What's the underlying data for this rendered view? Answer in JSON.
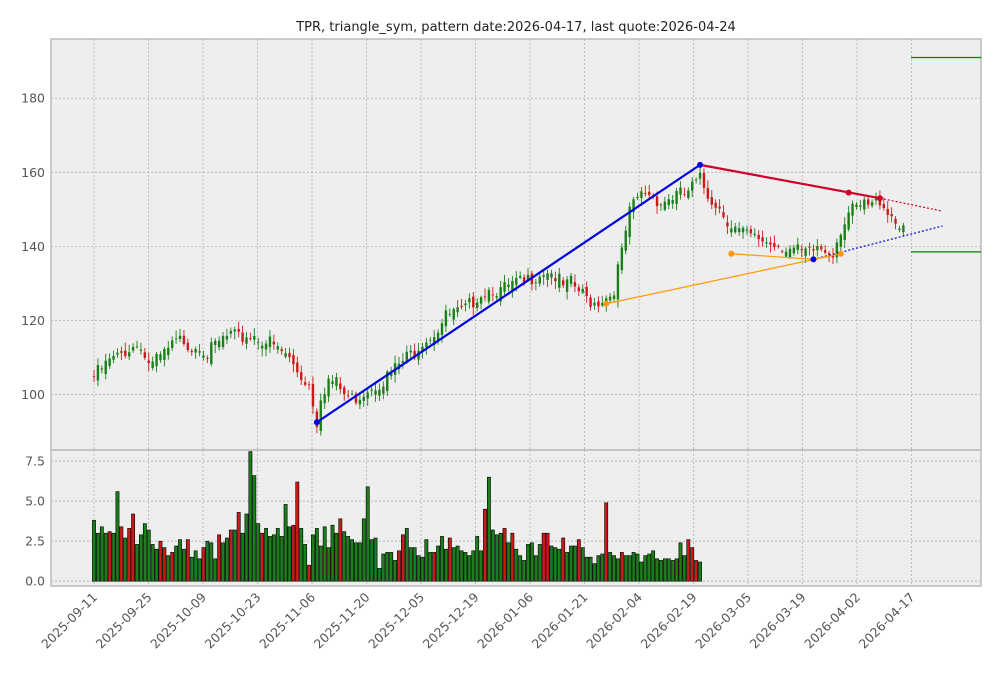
{
  "chart_data": {
    "type": "candlestick",
    "title": "TPR, triangle_sym, pattern date:2026-04-17, last quote:2026-04-24",
    "x_tick_labels": [
      "2025-09-11",
      "2025-09-25",
      "2025-10-09",
      "2025-10-23",
      "2025-11-06",
      "2025-11-20",
      "2025-12-05",
      "2025-12-19",
      "2026-01-06",
      "2026-01-21",
      "2026-02-04",
      "2026-02-19",
      "2026-03-05",
      "2026-03-19",
      "2026-04-02",
      "2026-04-17"
    ],
    "price_axis": {
      "ylim": [
        85,
        196
      ],
      "ticks": [
        100,
        120,
        140,
        160,
        180
      ]
    },
    "volume_axis": {
      "ylim": [
        -0.3,
        8.2
      ],
      "ticks": [
        0.0,
        2.5,
        5.0,
        7.5
      ],
      "tick_labels": [
        "0.0",
        "2.5",
        "5.0",
        "7.5"
      ]
    },
    "grid": true,
    "colors": {
      "up": "#1a7f1a",
      "down": "#cc1a1a",
      "trend_main": "#0000e0",
      "trend_upper": "#d0002a",
      "trend_aux": "#ff9900",
      "target_line": "#008000",
      "panel_bg": "#eeeeee"
    },
    "ohlc_close_path": [
      [
        0,
        106
      ],
      [
        2,
        108
      ],
      [
        4,
        110
      ],
      [
        6,
        111
      ],
      [
        8,
        113
      ],
      [
        10,
        114
      ],
      [
        12,
        115
      ],
      [
        13,
        111
      ],
      [
        15,
        109
      ],
      [
        17,
        111
      ],
      [
        19,
        113
      ],
      [
        21,
        115
      ],
      [
        23,
        116
      ],
      [
        25,
        114
      ],
      [
        27,
        115
      ],
      [
        29,
        112
      ],
      [
        31,
        114
      ],
      [
        33,
        116
      ],
      [
        35,
        117
      ],
      [
        37,
        116
      ],
      [
        39,
        117
      ],
      [
        41,
        117
      ],
      [
        43,
        116
      ],
      [
        45,
        115
      ],
      [
        47,
        113
      ],
      [
        49,
        112
      ],
      [
        51,
        109
      ],
      [
        53,
        106
      ],
      [
        55,
        104
      ],
      [
        56,
        99
      ],
      [
        57,
        94
      ],
      [
        58,
        101
      ],
      [
        60,
        105
      ],
      [
        62,
        104
      ],
      [
        64,
        101
      ],
      [
        66,
        100
      ],
      [
        68,
        101
      ],
      [
        70,
        103
      ],
      [
        72,
        104
      ],
      [
        74,
        105
      ],
      [
        76,
        107
      ],
      [
        78,
        109
      ],
      [
        80,
        111
      ],
      [
        82,
        113
      ],
      [
        84,
        116
      ],
      [
        86,
        117
      ],
      [
        88,
        119
      ],
      [
        90,
        122
      ],
      [
        92,
        123
      ],
      [
        94,
        123
      ],
      [
        96,
        125
      ],
      [
        98,
        128
      ],
      [
        100,
        129
      ],
      [
        102,
        130
      ],
      [
        104,
        129
      ],
      [
        106,
        130
      ],
      [
        108,
        131
      ],
      [
        110,
        131
      ],
      [
        112,
        133
      ],
      [
        114,
        134
      ],
      [
        116,
        135
      ],
      [
        118,
        133
      ],
      [
        120,
        130
      ],
      [
        122,
        131
      ],
      [
        124,
        129
      ],
      [
        126,
        127
      ],
      [
        128,
        126
      ],
      [
        130,
        127
      ],
      [
        132,
        128
      ],
      [
        133,
        130
      ],
      [
        134,
        135
      ],
      [
        135,
        139
      ],
      [
        136,
        145
      ],
      [
        137,
        150
      ],
      [
        139,
        154
      ],
      [
        141,
        156
      ],
      [
        143,
        155
      ],
      [
        145,
        153
      ],
      [
        147,
        154
      ],
      [
        149,
        155
      ],
      [
        151,
        155
      ],
      [
        153,
        157
      ],
      [
        155,
        159
      ],
      [
        157,
        155
      ],
      [
        159,
        153
      ],
      [
        161,
        150
      ],
      [
        163,
        147
      ],
      [
        165,
        145
      ],
      [
        167,
        144
      ],
      [
        169,
        143
      ],
      [
        171,
        143
      ],
      [
        173,
        142
      ],
      [
        175,
        142
      ],
      [
        177,
        141
      ],
      [
        179,
        140
      ],
      [
        181,
        139
      ],
      [
        183,
        139
      ],
      [
        185,
        141
      ],
      [
        187,
        140
      ],
      [
        189,
        140
      ],
      [
        191,
        146
      ],
      [
        193,
        150
      ],
      [
        195,
        151
      ],
      [
        197,
        152
      ],
      [
        199,
        152
      ],
      [
        201,
        154
      ],
      [
        203,
        151
      ],
      [
        205,
        148
      ],
      [
        207,
        147
      ]
    ],
    "volume_bars": [
      [
        "u",
        3.8
      ],
      [
        "u",
        3.0
      ],
      [
        "u",
        3.4
      ],
      [
        "u",
        3.0
      ],
      [
        "d",
        3.1
      ],
      [
        "u",
        3.0
      ],
      [
        "u",
        5.6
      ],
      [
        "d",
        3.4
      ],
      [
        "u",
        2.7
      ],
      [
        "d",
        3.3
      ],
      [
        "d",
        4.2
      ],
      [
        "u",
        2.3
      ],
      [
        "u",
        2.9
      ],
      [
        "u",
        3.6
      ],
      [
        "u",
        3.2
      ],
      [
        "u",
        2.3
      ],
      [
        "u",
        2.0
      ],
      [
        "d",
        2.5
      ],
      [
        "d",
        2.1
      ],
      [
        "u",
        1.6
      ],
      [
        "d",
        1.8
      ],
      [
        "u",
        2.2
      ],
      [
        "u",
        2.6
      ],
      [
        "u",
        2.0
      ],
      [
        "d",
        2.6
      ],
      [
        "u",
        1.5
      ],
      [
        "u",
        1.9
      ],
      [
        "u",
        1.4
      ],
      [
        "d",
        2.1
      ],
      [
        "u",
        2.5
      ],
      [
        "u",
        2.4
      ],
      [
        "u",
        1.4
      ],
      [
        "d",
        2.9
      ],
      [
        "u",
        2.4
      ],
      [
        "u",
        2.7
      ],
      [
        "d",
        3.2
      ],
      [
        "u",
        3.2
      ],
      [
        "d",
        4.3
      ],
      [
        "u",
        3.0
      ],
      [
        "u",
        4.2
      ],
      [
        "u",
        8.1
      ],
      [
        "u",
        6.6
      ],
      [
        "u",
        3.6
      ],
      [
        "d",
        3.0
      ],
      [
        "u",
        3.3
      ],
      [
        "u",
        2.8
      ],
      [
        "u",
        2.9
      ],
      [
        "u",
        3.3
      ],
      [
        "u",
        2.8
      ],
      [
        "u",
        4.8
      ],
      [
        "u",
        3.4
      ],
      [
        "d",
        3.5
      ],
      [
        "d",
        6.2
      ],
      [
        "u",
        3.3
      ],
      [
        "u",
        2.3
      ],
      [
        "d",
        1.0
      ],
      [
        "u",
        2.9
      ],
      [
        "u",
        3.3
      ],
      [
        "u",
        2.2
      ],
      [
        "u",
        3.4
      ],
      [
        "u",
        2.1
      ],
      [
        "u",
        3.5
      ],
      [
        "u",
        3.0
      ],
      [
        "d",
        3.9
      ],
      [
        "u",
        3.1
      ],
      [
        "u",
        2.8
      ],
      [
        "u",
        2.6
      ],
      [
        "u",
        2.4
      ],
      [
        "u",
        2.4
      ],
      [
        "u",
        3.9
      ],
      [
        "u",
        5.9
      ],
      [
        "u",
        2.6
      ],
      [
        "u",
        2.7
      ],
      [
        "u",
        0.8
      ],
      [
        "u",
        1.7
      ],
      [
        "u",
        1.8
      ],
      [
        "u",
        1.8
      ],
      [
        "u",
        1.3
      ],
      [
        "d",
        1.9
      ],
      [
        "d",
        2.9
      ],
      [
        "u",
        3.3
      ],
      [
        "u",
        2.1
      ],
      [
        "u",
        2.1
      ],
      [
        "u",
        1.6
      ],
      [
        "u",
        1.5
      ],
      [
        "u",
        2.6
      ],
      [
        "u",
        1.8
      ],
      [
        "d",
        1.8
      ],
      [
        "u",
        2.2
      ],
      [
        "u",
        2.8
      ],
      [
        "u",
        2.0
      ],
      [
        "d",
        2.7
      ],
      [
        "u",
        2.1
      ],
      [
        "u",
        2.2
      ],
      [
        "u",
        1.9
      ],
      [
        "u",
        1.8
      ],
      [
        "u",
        1.6
      ],
      [
        "u",
        1.9
      ],
      [
        "u",
        2.8
      ],
      [
        "u",
        1.9
      ],
      [
        "d",
        4.5
      ],
      [
        "u",
        6.5
      ],
      [
        "u",
        3.2
      ],
      [
        "u",
        2.9
      ],
      [
        "u",
        3.0
      ],
      [
        "d",
        3.3
      ],
      [
        "u",
        2.4
      ],
      [
        "d",
        3.0
      ],
      [
        "u",
        2.0
      ],
      [
        "u",
        1.6
      ],
      [
        "u",
        1.3
      ],
      [
        "u",
        2.3
      ],
      [
        "u",
        2.4
      ],
      [
        "u",
        1.6
      ],
      [
        "u",
        2.3
      ],
      [
        "d",
        3.0
      ],
      [
        "d",
        3.0
      ],
      [
        "u",
        2.2
      ],
      [
        "u",
        2.1
      ],
      [
        "u",
        2.0
      ],
      [
        "d",
        2.7
      ],
      [
        "u",
        1.8
      ],
      [
        "u",
        2.2
      ],
      [
        "u",
        2.2
      ],
      [
        "d",
        2.6
      ],
      [
        "u",
        2.1
      ],
      [
        "u",
        1.5
      ],
      [
        "u",
        1.5
      ],
      [
        "u",
        1.1
      ],
      [
        "u",
        1.6
      ],
      [
        "u",
        1.7
      ],
      [
        "d",
        4.9
      ],
      [
        "u",
        1.8
      ],
      [
        "u",
        1.6
      ],
      [
        "u",
        1.4
      ],
      [
        "d",
        1.8
      ],
      [
        "u",
        1.6
      ],
      [
        "u",
        1.6
      ],
      [
        "u",
        1.8
      ],
      [
        "u",
        1.7
      ],
      [
        "u",
        1.2
      ],
      [
        "u",
        1.6
      ],
      [
        "u",
        1.7
      ],
      [
        "u",
        1.9
      ],
      [
        "u",
        1.4
      ],
      [
        "u",
        1.3
      ],
      [
        "u",
        1.4
      ],
      [
        "u",
        1.4
      ],
      [
        "u",
        1.3
      ],
      [
        "u",
        1.4
      ],
      [
        "u",
        2.4
      ],
      [
        "u",
        1.6
      ],
      [
        "d",
        2.6
      ],
      [
        "d",
        2.1
      ],
      [
        "d",
        1.3
      ],
      [
        "u",
        1.2
      ]
    ],
    "trendlines": [
      {
        "color": "main",
        "points": [
          [
            57,
            92.5
          ],
          [
            155,
            162
          ]
        ],
        "dashed": false
      },
      {
        "color": "upper",
        "points": [
          [
            155,
            162
          ],
          [
            201,
            153
          ]
        ],
        "dashed": false
      },
      {
        "color": "upper",
        "points": [
          [
            201,
            153
          ],
          [
            217,
            149.5
          ]
        ],
        "dashed": true
      },
      {
        "color": "main",
        "points": [
          [
            184,
            136.5
          ],
          [
            217,
            145.5
          ]
        ],
        "dashed": true
      },
      {
        "color": "aux",
        "points": [
          [
            131,
            124.5
          ],
          [
            191,
            138
          ]
        ],
        "dashed": false
      },
      {
        "color": "aux",
        "points": [
          [
            163,
            138
          ],
          [
            184,
            136.5
          ]
        ],
        "dashed": false
      },
      {
        "color": "aux",
        "points": [
          [
            184,
            136.5
          ],
          [
            191,
            138
          ]
        ],
        "dashed": false
      }
    ],
    "markers": [
      {
        "color": "main",
        "x": 57,
        "y": 92.5
      },
      {
        "color": "main",
        "x": 155,
        "y": 162
      },
      {
        "color": "main",
        "x": 184,
        "y": 136.5
      },
      {
        "color": "upper",
        "x": 193,
        "y": 154.5
      },
      {
        "color": "upper",
        "x": 201,
        "y": 153
      },
      {
        "color": "aux",
        "x": 131,
        "y": 124.5
      },
      {
        "color": "aux",
        "x": 163,
        "y": 138
      },
      {
        "color": "aux",
        "x": 191,
        "y": 138
      }
    ],
    "target_lines": [
      {
        "y": 191
      },
      {
        "y": 138.5
      }
    ]
  }
}
